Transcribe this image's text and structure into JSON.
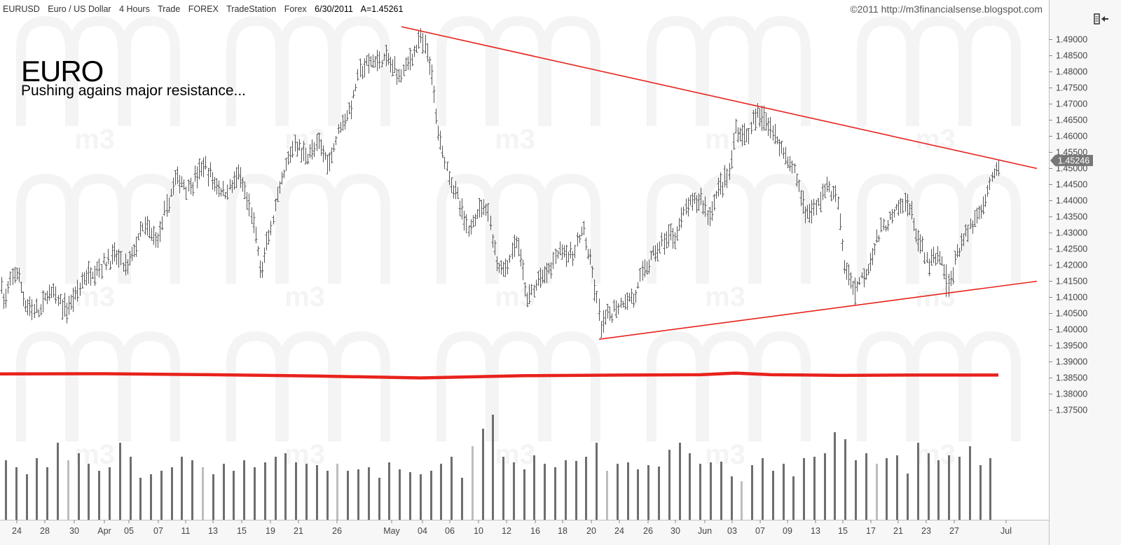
{
  "header": {
    "symbol": "EURUSD",
    "description": "Euro / US Dollar",
    "interval": "4 Hours",
    "type": "Trade",
    "market": "FOREX",
    "provider": "TradeStation",
    "exchange": "Forex",
    "date": "6/30/2011",
    "last": "A=1.45261",
    "copyright": "©2011 http://m3financialsense.blogspot.com"
  },
  "annotation": {
    "title": "EURO",
    "subtitle": "Pushing agains major resistance..."
  },
  "watermark": "m3",
  "price_tag": "1.45246",
  "colors": {
    "price_bars": "#555555",
    "trendline": "#e8221c",
    "volume_bars": "#6e6e6e",
    "volume_avg": "#e8221c",
    "axis_bg": "#f7f7f7",
    "price_tag_bg": "#777777"
  },
  "chart_data": {
    "type": "ohlc",
    "y_axis": {
      "ticks": [
        "1.37500",
        "1.38000",
        "1.38500",
        "1.39000",
        "1.39500",
        "1.40000",
        "1.40500",
        "1.41000",
        "1.41500",
        "1.42000",
        "1.42500",
        "1.43000",
        "1.43500",
        "1.44000",
        "1.44500",
        "1.45000",
        "1.45500",
        "1.46000",
        "1.46500",
        "1.47000",
        "1.47500",
        "1.48000",
        "1.48500",
        "1.49000"
      ],
      "range": [
        1.3705,
        1.4965
      ]
    },
    "x_axis": {
      "labels": [
        "24",
        "28",
        "30",
        "Apr",
        "05",
        "07",
        "11",
        "13",
        "15",
        "19",
        "21",
        "26",
        "May",
        "04",
        "06",
        "10",
        "12",
        "16",
        "18",
        "20",
        "24",
        "26",
        "30",
        "Jun",
        "03",
        "07",
        "09",
        "13",
        "15",
        "17",
        "21",
        "23",
        "27",
        "Jul"
      ]
    },
    "price_path": [
      {
        "t": 0,
        "p": 1.417
      },
      {
        "t": 6,
        "p": 1.408
      },
      {
        "t": 22,
        "p": 1.419
      },
      {
        "t": 36,
        "p": 1.408
      },
      {
        "t": 55,
        "p": 1.405
      },
      {
        "t": 70,
        "p": 1.412
      },
      {
        "t": 95,
        "p": 1.406
      },
      {
        "t": 120,
        "p": 1.416
      },
      {
        "t": 145,
        "p": 1.42
      },
      {
        "t": 165,
        "p": 1.423
      },
      {
        "t": 180,
        "p": 1.419
      },
      {
        "t": 205,
        "p": 1.432
      },
      {
        "t": 225,
        "p": 1.428
      },
      {
        "t": 250,
        "p": 1.447
      },
      {
        "t": 270,
        "p": 1.444
      },
      {
        "t": 290,
        "p": 1.451
      },
      {
        "t": 305,
        "p": 1.446
      },
      {
        "t": 320,
        "p": 1.442
      },
      {
        "t": 340,
        "p": 1.448
      },
      {
        "t": 360,
        "p": 1.435
      },
      {
        "t": 372,
        "p": 1.418
      },
      {
        "t": 390,
        "p": 1.435
      },
      {
        "t": 405,
        "p": 1.448
      },
      {
        "t": 420,
        "p": 1.458
      },
      {
        "t": 435,
        "p": 1.454
      },
      {
        "t": 455,
        "p": 1.457
      },
      {
        "t": 470,
        "p": 1.452
      },
      {
        "t": 485,
        "p": 1.464
      },
      {
        "t": 500,
        "p": 1.468
      },
      {
        "t": 512,
        "p": 1.48
      },
      {
        "t": 530,
        "p": 1.483
      },
      {
        "t": 550,
        "p": 1.484
      },
      {
        "t": 570,
        "p": 1.479
      },
      {
        "t": 585,
        "p": 1.484
      },
      {
        "t": 600,
        "p": 1.49
      },
      {
        "t": 612,
        "p": 1.485
      },
      {
        "t": 620,
        "p": 1.47
      },
      {
        "t": 628,
        "p": 1.458
      },
      {
        "t": 640,
        "p": 1.449
      },
      {
        "t": 655,
        "p": 1.439
      },
      {
        "t": 668,
        "p": 1.43
      },
      {
        "t": 680,
        "p": 1.437
      },
      {
        "t": 695,
        "p": 1.439
      },
      {
        "t": 708,
        "p": 1.421
      },
      {
        "t": 720,
        "p": 1.418
      },
      {
        "t": 738,
        "p": 1.428
      },
      {
        "t": 752,
        "p": 1.409
      },
      {
        "t": 768,
        "p": 1.415
      },
      {
        "t": 785,
        "p": 1.419
      },
      {
        "t": 800,
        "p": 1.426
      },
      {
        "t": 815,
        "p": 1.422
      },
      {
        "t": 832,
        "p": 1.431
      },
      {
        "t": 845,
        "p": 1.417
      },
      {
        "t": 858,
        "p": 1.401
      },
      {
        "t": 872,
        "p": 1.405
      },
      {
        "t": 890,
        "p": 1.409
      },
      {
        "t": 905,
        "p": 1.41
      },
      {
        "t": 920,
        "p": 1.419
      },
      {
        "t": 935,
        "p": 1.424
      },
      {
        "t": 950,
        "p": 1.428
      },
      {
        "t": 965,
        "p": 1.43
      },
      {
        "t": 980,
        "p": 1.438
      },
      {
        "t": 1000,
        "p": 1.441
      },
      {
        "t": 1012,
        "p": 1.435
      },
      {
        "t": 1025,
        "p": 1.444
      },
      {
        "t": 1040,
        "p": 1.448
      },
      {
        "t": 1050,
        "p": 1.462
      },
      {
        "t": 1065,
        "p": 1.46
      },
      {
        "t": 1080,
        "p": 1.466
      },
      {
        "t": 1095,
        "p": 1.465
      },
      {
        "t": 1108,
        "p": 1.459
      },
      {
        "t": 1120,
        "p": 1.455
      },
      {
        "t": 1135,
        "p": 1.448
      },
      {
        "t": 1150,
        "p": 1.436
      },
      {
        "t": 1165,
        "p": 1.438
      },
      {
        "t": 1180,
        "p": 1.445
      },
      {
        "t": 1195,
        "p": 1.44
      },
      {
        "t": 1205,
        "p": 1.419
      },
      {
        "t": 1220,
        "p": 1.413
      },
      {
        "t": 1235,
        "p": 1.418
      },
      {
        "t": 1250,
        "p": 1.427
      },
      {
        "t": 1265,
        "p": 1.433
      },
      {
        "t": 1280,
        "p": 1.437
      },
      {
        "t": 1295,
        "p": 1.44
      },
      {
        "t": 1310,
        "p": 1.428
      },
      {
        "t": 1325,
        "p": 1.42
      },
      {
        "t": 1340,
        "p": 1.423
      },
      {
        "t": 1355,
        "p": 1.414
      },
      {
        "t": 1368,
        "p": 1.425
      },
      {
        "t": 1380,
        "p": 1.43
      },
      {
        "t": 1395,
        "p": 1.436
      },
      {
        "t": 1408,
        "p": 1.442
      },
      {
        "t": 1420,
        "p": 1.449
      },
      {
        "t": 1425,
        "p": 1.451
      }
    ],
    "extremes": [
      {
        "t": 372,
        "p": 1.416,
        "kind": "low"
      },
      {
        "t": 600,
        "p": 1.4935,
        "kind": "high"
      },
      {
        "t": 858,
        "p": 1.3975,
        "kind": "low"
      },
      {
        "t": 1088,
        "p": 1.4695,
        "kind": "high"
      },
      {
        "t": 1220,
        "p": 1.4075,
        "kind": "low"
      },
      {
        "t": 1352,
        "p": 1.4102,
        "kind": "low"
      },
      {
        "t": 1425,
        "p": 1.4528,
        "kind": "high"
      }
    ],
    "trendlines": [
      {
        "name": "resistance",
        "from": {
          "t": 573,
          "p": 1.494
        },
        "to": {
          "t": 1480,
          "p": 1.45
        }
      },
      {
        "name": "support",
        "from": {
          "t": 855,
          "p": 1.397
        },
        "to": {
          "t": 1480,
          "p": 1.415
        }
      }
    ],
    "volume": {
      "avg_level_p": 1.3861,
      "avg_path": [
        {
          "t": 0,
          "p": 1.38625
        },
        {
          "t": 150,
          "p": 1.3863
        },
        {
          "t": 300,
          "p": 1.386
        },
        {
          "t": 450,
          "p": 1.3856
        },
        {
          "t": 600,
          "p": 1.385
        },
        {
          "t": 750,
          "p": 1.3857
        },
        {
          "t": 900,
          "p": 1.3859
        },
        {
          "t": 1000,
          "p": 1.386
        },
        {
          "t": 1050,
          "p": 1.3865
        },
        {
          "t": 1100,
          "p": 1.386
        },
        {
          "t": 1200,
          "p": 1.3858
        },
        {
          "t": 1300,
          "p": 1.3859
        },
        {
          "t": 1425,
          "p": 1.3859
        }
      ]
    }
  }
}
